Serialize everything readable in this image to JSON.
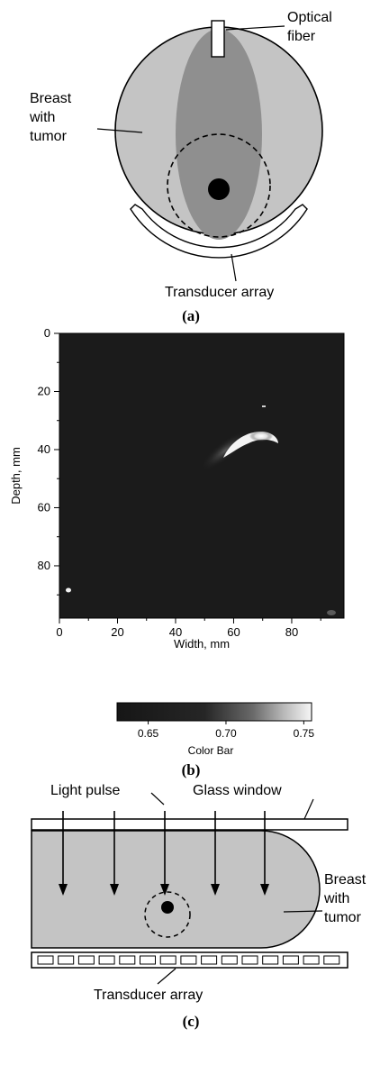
{
  "panel_a": {
    "label_optical_fiber_line1": "Optical",
    "label_optical_fiber_line2": "fiber",
    "label_breast_line1": "Breast",
    "label_breast_line2": "with",
    "label_breast_line3": "tumor",
    "label_transducer": "Transducer array",
    "caption": "(a)"
  },
  "panel_b": {
    "caption": "(b)",
    "colorbar_label": "Color Bar",
    "colorbar_ticks": [
      "0.65",
      "0.70",
      "0.75"
    ]
  },
  "panel_c": {
    "label_light_pulse": "Light pulse",
    "label_glass_window": "Glass window",
    "label_breast_line1": "Breast",
    "label_breast_line2": "with",
    "label_breast_line3": "tumor",
    "label_transducer": "Transducer array",
    "caption": "(c)"
  },
  "chart_data": {
    "type": "heatmap",
    "xlabel": "Width, mm",
    "ylabel": "Depth, mm",
    "xlim": [
      0,
      98
    ],
    "ylim": [
      0,
      98
    ],
    "y_inverted": true,
    "xticks": [
      0,
      20,
      40,
      60,
      80
    ],
    "yticks": [
      0,
      20,
      40,
      60,
      80
    ],
    "colorbar": {
      "min": 0.63,
      "max": 0.755,
      "ticks": [
        0.65,
        0.7,
        0.75
      ],
      "label": "Color Bar"
    },
    "features": [
      {
        "kind": "arc-shaped bright region (tumor)",
        "x": 64,
        "y": 34
      },
      {
        "kind": "small bright spot",
        "x": 63,
        "y": 24
      },
      {
        "kind": "small bright spot",
        "x": 2,
        "y": 84
      },
      {
        "kind": "faint speckle",
        "x": 86,
        "y": 94
      }
    ]
  }
}
